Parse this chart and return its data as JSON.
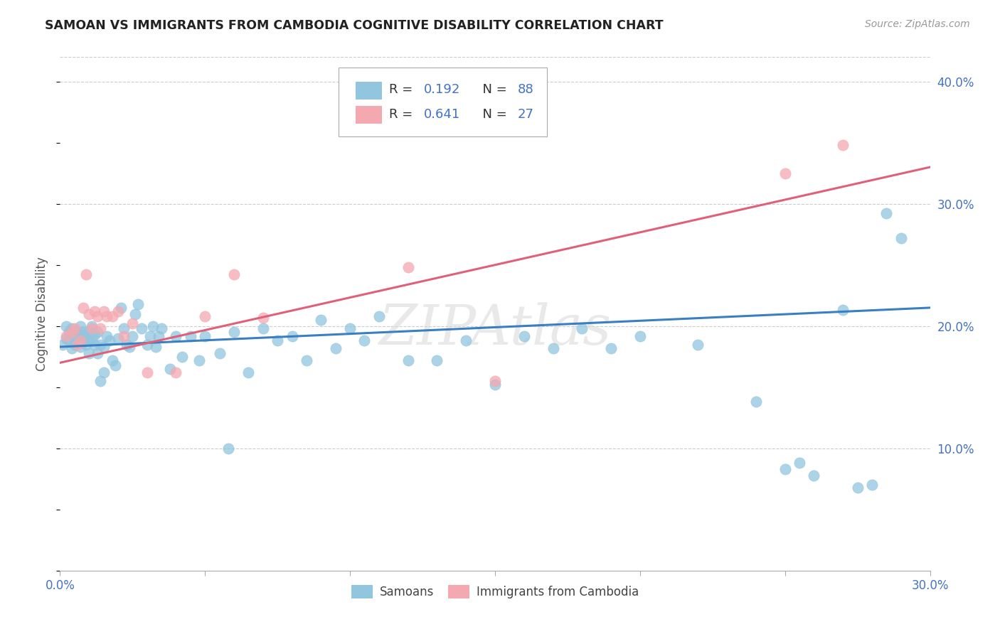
{
  "title": "SAMOAN VS IMMIGRANTS FROM CAMBODIA COGNITIVE DISABILITY CORRELATION CHART",
  "source": "Source: ZipAtlas.com",
  "ylabel": "Cognitive Disability",
  "xlim": [
    0.0,
    0.3
  ],
  "ylim": [
    0.0,
    0.42
  ],
  "samoans_color": "#92c5de",
  "cambodia_color": "#f4a9b0",
  "blue_line_color": "#3a7fc1",
  "pink_line_color": "#e0607a",
  "blue_line_y0": 0.183,
  "blue_line_y1": 0.215,
  "pink_line_y0": 0.17,
  "pink_line_y1": 0.33,
  "watermark": "ZIPAtlas",
  "samoans_x": [
    0.001,
    0.002,
    0.002,
    0.003,
    0.003,
    0.004,
    0.004,
    0.005,
    0.005,
    0.006,
    0.006,
    0.007,
    0.007,
    0.007,
    0.008,
    0.008,
    0.009,
    0.009,
    0.01,
    0.01,
    0.01,
    0.011,
    0.011,
    0.012,
    0.012,
    0.013,
    0.013,
    0.014,
    0.014,
    0.015,
    0.015,
    0.016,
    0.017,
    0.018,
    0.019,
    0.02,
    0.021,
    0.022,
    0.023,
    0.024,
    0.025,
    0.026,
    0.027,
    0.028,
    0.03,
    0.031,
    0.032,
    0.033,
    0.034,
    0.035,
    0.038,
    0.04,
    0.042,
    0.045,
    0.048,
    0.05,
    0.055,
    0.058,
    0.06,
    0.065,
    0.07,
    0.075,
    0.08,
    0.085,
    0.09,
    0.095,
    0.1,
    0.105,
    0.11,
    0.12,
    0.13,
    0.14,
    0.15,
    0.16,
    0.17,
    0.18,
    0.19,
    0.2,
    0.22,
    0.24,
    0.25,
    0.255,
    0.26,
    0.27,
    0.275,
    0.28,
    0.285,
    0.29
  ],
  "samoans_y": [
    0.185,
    0.19,
    0.2,
    0.188,
    0.195,
    0.182,
    0.198,
    0.185,
    0.192,
    0.188,
    0.195,
    0.183,
    0.192,
    0.2,
    0.187,
    0.195,
    0.185,
    0.193,
    0.188,
    0.195,
    0.178,
    0.19,
    0.2,
    0.185,
    0.193,
    0.178,
    0.195,
    0.185,
    0.155,
    0.183,
    0.162,
    0.192,
    0.188,
    0.172,
    0.168,
    0.19,
    0.215,
    0.198,
    0.185,
    0.183,
    0.192,
    0.21,
    0.218,
    0.198,
    0.185,
    0.192,
    0.2,
    0.183,
    0.192,
    0.198,
    0.165,
    0.192,
    0.175,
    0.192,
    0.172,
    0.192,
    0.178,
    0.1,
    0.195,
    0.162,
    0.198,
    0.188,
    0.192,
    0.172,
    0.205,
    0.182,
    0.198,
    0.188,
    0.208,
    0.172,
    0.172,
    0.188,
    0.152,
    0.192,
    0.182,
    0.198,
    0.182,
    0.192,
    0.185,
    0.138,
    0.083,
    0.088,
    0.078,
    0.213,
    0.068,
    0.07,
    0.292,
    0.272
  ],
  "cambodia_x": [
    0.002,
    0.004,
    0.005,
    0.006,
    0.007,
    0.008,
    0.009,
    0.01,
    0.011,
    0.012,
    0.013,
    0.014,
    0.015,
    0.016,
    0.018,
    0.02,
    0.022,
    0.025,
    0.03,
    0.04,
    0.05,
    0.06,
    0.07,
    0.12,
    0.15,
    0.25,
    0.27
  ],
  "cambodia_y": [
    0.192,
    0.195,
    0.198,
    0.185,
    0.188,
    0.215,
    0.242,
    0.21,
    0.198,
    0.212,
    0.208,
    0.198,
    0.212,
    0.208,
    0.208,
    0.212,
    0.192,
    0.202,
    0.162,
    0.162,
    0.208,
    0.242,
    0.207,
    0.248,
    0.155,
    0.325,
    0.348
  ]
}
